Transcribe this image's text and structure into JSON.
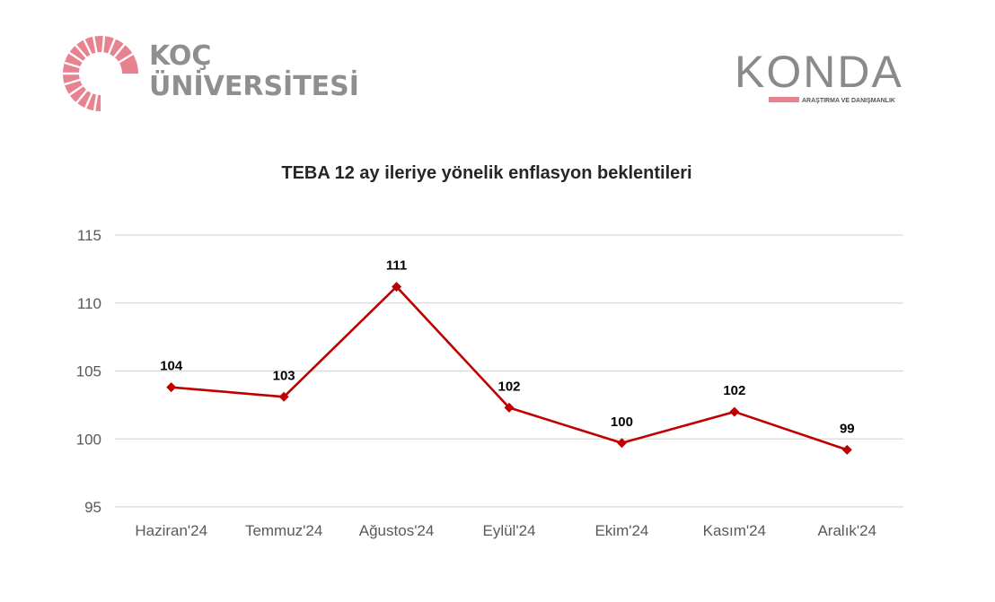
{
  "logos": {
    "koc_line1": "KOÇ",
    "koc_line2": "ÜNİVERSİTESİ",
    "konda_name": "KONDA",
    "konda_sub": "ARAŞTIRMA VE DANIŞMANLIK"
  },
  "colors": {
    "series": "#c00000",
    "grid": "#d9d9d9",
    "koc_logo": "#e8828f",
    "konda_bar": "#e8828f"
  },
  "chart_data": {
    "type": "line",
    "title": "TEBA 12 ay ileriye yönelik enflasyon beklentileri",
    "xlabel": "",
    "ylabel": "",
    "categories": [
      "Haziran'24",
      "Temmuz'24",
      "Ağustos'24",
      "Eylül'24",
      "Ekim'24",
      "Kasım'24",
      "Aralık'24"
    ],
    "series": [
      {
        "values": [
          103.8,
          103.1,
          111.2,
          102.3,
          99.7,
          102.0,
          99.2
        ],
        "labels": [
          "104",
          "103",
          "111",
          "102",
          "100",
          "102",
          "99"
        ]
      }
    ],
    "ylim": [
      95,
      115
    ],
    "yticks": [
      95,
      100,
      105,
      110,
      115
    ],
    "grid": true,
    "legend": "none"
  }
}
